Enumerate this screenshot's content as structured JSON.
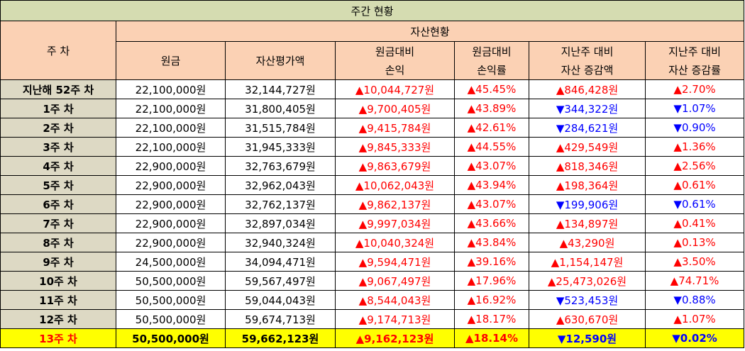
{
  "title": "주간 현황",
  "headers": {
    "week": "주 차",
    "asset_status": "자산현황",
    "principal": "원금",
    "valuation": "자산평가액",
    "pl_line1": "원금대비",
    "pl_line2": "손익",
    "plr_line1": "원금대비",
    "plr_line2": "손익률",
    "chg_line1": "지난주 대비",
    "chg_line2": "자산 증감액",
    "chgr_line1": "지난주 대비",
    "chgr_line2": "자산 증감률"
  },
  "rows": [
    {
      "week": "지난해 52주 차",
      "principal": "22,100,000원",
      "valuation": "32,144,727원",
      "pl": "▲10,044,727원",
      "pl_dir": "up",
      "plr": "▲45.45%",
      "plr_dir": "up",
      "chg": "▲846,428원",
      "chg_dir": "up",
      "chgr": "▲2.70%",
      "chgr_dir": "up"
    },
    {
      "week": "1주 차",
      "principal": "22,100,000원",
      "valuation": "31,800,405원",
      "pl": "▲9,700,405원",
      "pl_dir": "up",
      "plr": "▲43.89%",
      "plr_dir": "up",
      "chg": "▼344,322원",
      "chg_dir": "down",
      "chgr": "▼1.07%",
      "chgr_dir": "down"
    },
    {
      "week": "2주 차",
      "principal": "22,100,000원",
      "valuation": "31,515,784원",
      "pl": "▲9,415,784원",
      "pl_dir": "up",
      "plr": "▲42.61%",
      "plr_dir": "up",
      "chg": "▼284,621원",
      "chg_dir": "down",
      "chgr": "▼0.90%",
      "chgr_dir": "down"
    },
    {
      "week": "3주 차",
      "principal": "22,100,000원",
      "valuation": "31,945,333원",
      "pl": "▲9,845,333원",
      "pl_dir": "up",
      "plr": "▲44.55%",
      "plr_dir": "up",
      "chg": "▲429,549원",
      "chg_dir": "up",
      "chgr": "▲1.36%",
      "chgr_dir": "up"
    },
    {
      "week": "4주 차",
      "principal": "22,900,000원",
      "valuation": "32,763,679원",
      "pl": "▲9,863,679원",
      "pl_dir": "up",
      "plr": "▲43.07%",
      "plr_dir": "up",
      "chg": "▲818,346원",
      "chg_dir": "up",
      "chgr": "▲2.56%",
      "chgr_dir": "up"
    },
    {
      "week": "5주 차",
      "principal": "22,900,000원",
      "valuation": "32,962,043원",
      "pl": "▲10,062,043원",
      "pl_dir": "up",
      "plr": "▲43.94%",
      "plr_dir": "up",
      "chg": "▲198,364원",
      "chg_dir": "up",
      "chgr": "▲0.61%",
      "chgr_dir": "up"
    },
    {
      "week": "6주 차",
      "principal": "22,900,000원",
      "valuation": "32,762,137원",
      "pl": "▲9,862,137원",
      "pl_dir": "up",
      "plr": "▲43.07%",
      "plr_dir": "up",
      "chg": "▼199,906원",
      "chg_dir": "down",
      "chgr": "▼0.61%",
      "chgr_dir": "down"
    },
    {
      "week": "7주 차",
      "principal": "22,900,000원",
      "valuation": "32,897,034원",
      "pl": "▲9,997,034원",
      "pl_dir": "up",
      "plr": "▲43.66%",
      "plr_dir": "up",
      "chg": "▲134,897원",
      "chg_dir": "up",
      "chgr": "▲0.41%",
      "chgr_dir": "up"
    },
    {
      "week": "8주 차",
      "principal": "22,900,000원",
      "valuation": "32,940,324원",
      "pl": "▲10,040,324원",
      "pl_dir": "up",
      "plr": "▲43.84%",
      "plr_dir": "up",
      "chg": "▲43,290원",
      "chg_dir": "up",
      "chgr": "▲0.13%",
      "chgr_dir": "up"
    },
    {
      "week": "9주 차",
      "principal": "24,500,000원",
      "valuation": "34,094,471원",
      "pl": "▲9,594,471원",
      "pl_dir": "up",
      "plr": "▲39.16%",
      "plr_dir": "up",
      "chg": "▲1,154,147원",
      "chg_dir": "up",
      "chgr": "▲3.50%",
      "chgr_dir": "up"
    },
    {
      "week": "10주 차",
      "principal": "50,500,000원",
      "valuation": "59,567,497원",
      "pl": "▲9,067,497원",
      "pl_dir": "up",
      "plr": "▲17.96%",
      "plr_dir": "up",
      "chg": "▲25,473,026원",
      "chg_dir": "up",
      "chgr": "▲74.71%",
      "chgr_dir": "up"
    },
    {
      "week": "11주 차",
      "principal": "50,500,000원",
      "valuation": "59,044,043원",
      "pl": "▲8,544,043원",
      "pl_dir": "up",
      "plr": "▲16.92%",
      "plr_dir": "up",
      "chg": "▼523,453원",
      "chg_dir": "down",
      "chgr": "▼0.88%",
      "chgr_dir": "down"
    },
    {
      "week": "12주 차",
      "principal": "50,500,000원",
      "valuation": "59,674,713원",
      "pl": "▲9,174,713원",
      "pl_dir": "up",
      "plr": "▲18.17%",
      "plr_dir": "up",
      "chg": "▲630,670원",
      "chg_dir": "up",
      "chgr": "▲1.07%",
      "chgr_dir": "up"
    },
    {
      "week": "13주 차",
      "principal": "50,500,000원",
      "valuation": "59,662,123원",
      "pl": "▲9,162,123원",
      "pl_dir": "up",
      "plr": "▲18.14%",
      "plr_dir": "up",
      "chg": "▼12,590원",
      "chg_dir": "down",
      "chgr": "▼0.02%",
      "chgr_dir": "down",
      "current": true
    }
  ],
  "colors": {
    "up": "#ff0000",
    "down": "#0000ff",
    "highlight": "#ffff00",
    "header": "#fbd1b4",
    "title": "#d5dcb1",
    "label": "#ddd9c4"
  }
}
